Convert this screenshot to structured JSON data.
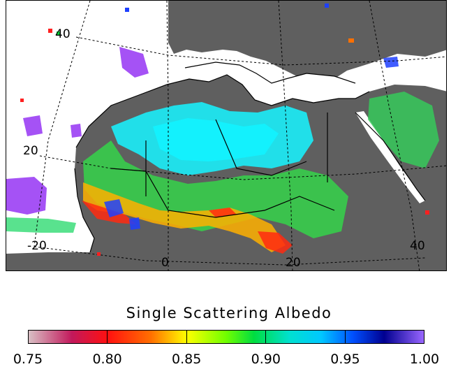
{
  "map": {
    "grid_labels": [
      "40",
      "20",
      "-20",
      "0",
      "20",
      "40"
    ],
    "colors": {
      "land": "#5f5f5f",
      "no_data": "#ffffff",
      "coast": "#000000",
      "high_albedo": "#a552f5",
      "mid": "#00e0ff",
      "low": "#ff2020"
    }
  },
  "colorbar": {
    "title": "Single Scattering Albedo",
    "range": [
      0.75,
      1.0
    ],
    "tick_labels": [
      "0.75",
      "0.80",
      "0.85",
      "0.90",
      "0.95",
      "1.00"
    ]
  }
}
